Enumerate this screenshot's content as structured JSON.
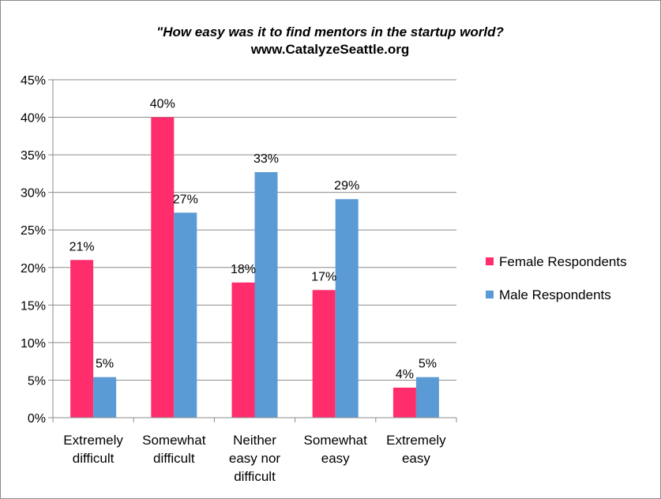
{
  "chart_data": {
    "type": "bar",
    "title_line1": "\"How easy was it to find mentors in the startup world?",
    "title_line2": "www.CatalyzeSeattle.org",
    "categories": [
      [
        "Extremely",
        "difficult"
      ],
      [
        "Somewhat",
        "difficult"
      ],
      [
        "Neither",
        "easy nor",
        "difficult"
      ],
      [
        "Somewhat",
        "easy"
      ],
      [
        "Extremely",
        "easy"
      ]
    ],
    "series": [
      {
        "name": "Female Respondents",
        "color": "#ff2d6b",
        "values": [
          21,
          40,
          18,
          17,
          4
        ],
        "labels": [
          "21%",
          "40%",
          "18%",
          "17%",
          "4%"
        ]
      },
      {
        "name": "Male Respondents",
        "color": "#5b9bd5",
        "values": [
          5.4,
          27.3,
          32.7,
          29.1,
          5.4
        ],
        "labels": [
          "5%",
          "27%",
          "33%",
          "29%",
          "5%"
        ]
      }
    ],
    "yticks": [
      "0%",
      "5%",
      "10%",
      "15%",
      "20%",
      "25%",
      "30%",
      "35%",
      "40%",
      "45%"
    ],
    "ylim": [
      0,
      45
    ],
    "grid": true,
    "legend_position": "right"
  }
}
